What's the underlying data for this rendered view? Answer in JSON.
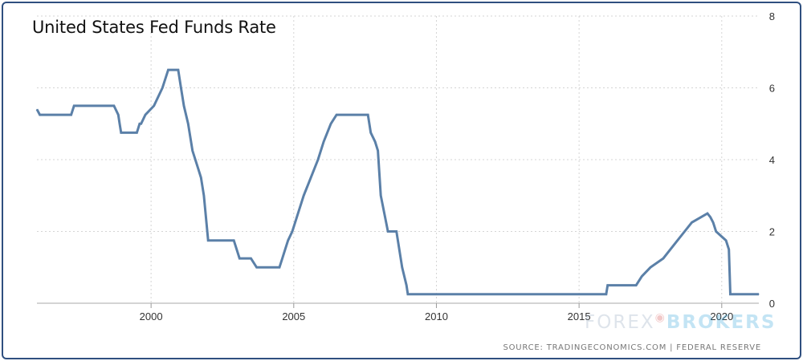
{
  "title": "United States Fed Funds Rate",
  "source": "SOURCE: TRADINGECONOMICS.COM  |  FEDERAL RESERVE",
  "watermark": {
    "part1": "FOREX",
    "part2": "BROKERS",
    "icon": "bull-logo-icon"
  },
  "colors": {
    "line": "#5b80a8",
    "grid": "#d4d4d4",
    "frame": "#2f4f7f"
  },
  "chart_data": {
    "type": "line",
    "title": "United States Fed Funds Rate",
    "xlabel": "",
    "ylabel": "",
    "xlim": [
      1996.0,
      2021.3
    ],
    "ylim": [
      0,
      8
    ],
    "x_ticks": [
      2000,
      2005,
      2010,
      2015,
      2020
    ],
    "y_ticks": [
      0,
      2,
      4,
      6,
      8
    ],
    "y_axis_side": "right",
    "grid": true,
    "legend": "none",
    "series": [
      {
        "name": "",
        "x": [
          1996.0,
          1996.1,
          1997.2,
          1997.3,
          1998.7,
          1998.85,
          1998.9,
          1998.95,
          1999.5,
          1999.6,
          1999.65,
          1999.8,
          2000.1,
          2000.4,
          2000.6,
          2000.95,
          2001.05,
          2001.15,
          2001.3,
          2001.45,
          2001.65,
          2001.75,
          2001.85,
          2002.0,
          2002.9,
          2003.1,
          2003.5,
          2003.7,
          2004.5,
          2004.6,
          2004.7,
          2004.8,
          2004.95,
          2005.15,
          2005.35,
          2005.6,
          2005.85,
          2006.05,
          2006.3,
          2006.5,
          2007.6,
          2007.7,
          2007.85,
          2007.95,
          2008.05,
          2008.3,
          2008.6,
          2008.8,
          2008.95,
          2009.0,
          2015.95,
          2016.0,
          2017.0,
          2017.2,
          2017.5,
          2017.95,
          2018.2,
          2018.45,
          2018.7,
          2018.95,
          2019.5,
          2019.6,
          2019.7,
          2019.8,
          2020.15,
          2020.25,
          2020.3,
          2021.3
        ],
        "y": [
          5.4,
          5.25,
          5.25,
          5.5,
          5.5,
          5.25,
          5.0,
          4.75,
          4.75,
          5.0,
          5.0,
          5.25,
          5.5,
          6.0,
          6.5,
          6.5,
          6.0,
          5.5,
          5.0,
          4.25,
          3.75,
          3.5,
          3.0,
          1.75,
          1.75,
          1.25,
          1.25,
          1.0,
          1.0,
          1.25,
          1.5,
          1.75,
          2.0,
          2.5,
          3.0,
          3.5,
          4.0,
          4.5,
          5.0,
          5.25,
          5.25,
          4.75,
          4.5,
          4.25,
          3.0,
          2.0,
          2.0,
          1.0,
          0.5,
          0.25,
          0.25,
          0.5,
          0.5,
          0.75,
          1.0,
          1.25,
          1.5,
          1.75,
          2.0,
          2.25,
          2.5,
          2.4,
          2.25,
          2.0,
          1.75,
          1.5,
          0.25,
          0.25
        ]
      }
    ]
  }
}
